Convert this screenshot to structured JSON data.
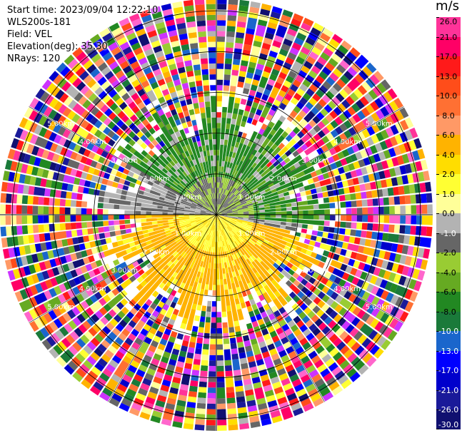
{
  "header": {
    "start_time": "Start time: 2023/09/04 12:22:10",
    "instrument": "WLS200s-181",
    "field": "Field: VEL",
    "elevation": "Elevation(deg): 35.30",
    "nrays": "NRays: 120"
  },
  "colorbar": {
    "unit": "m/s",
    "ticks": [
      "26.0",
      "21.0",
      "17.0",
      "13.0",
      "10.0",
      "8.0",
      "6.0",
      "4.0",
      "2.0",
      "1.0",
      "0.0",
      "-1.0",
      "-2.0",
      "-4.0",
      "-6.0",
      "-8.0",
      "-10.0",
      "-13.0",
      "-17.0",
      "-21.0",
      "-26.0",
      "-30.0"
    ],
    "colors": [
      "#ff3399",
      "#ff0066",
      "#ff1a1a",
      "#ff4d1a",
      "#ff7033",
      "#ff9966",
      "#ffb300",
      "#ffdd00",
      "#ffff33",
      "#ffff99",
      "#b3b3b3",
      "#666666",
      "#99cc33",
      "#66aa22",
      "#228822",
      "#1a7a3a",
      "#1a66cc",
      "#0000ff",
      "#0000cc",
      "#1a1a99",
      "#101070"
    ]
  },
  "range_rings": {
    "labels": [
      "1.00km",
      "2.00km",
      "3.00km",
      "4.00km",
      "5.00km"
    ],
    "max_km": 5.3
  },
  "field_colors": {
    "ring_line": "#000000",
    "noise_palette": [
      "#ff3399",
      "#ff0066",
      "#ff1a1a",
      "#ff4d1a",
      "#ff7033",
      "#ff9966",
      "#ffb300",
      "#ffdd00",
      "#ffff33",
      "#ffff99",
      "#b3b3b3",
      "#666666",
      "#99cc33",
      "#66aa22",
      "#228822",
      "#1a7a3a",
      "#1a66cc",
      "#0000ff",
      "#0000cc",
      "#1a1a99",
      "#101070",
      "#cc33ff",
      "#ff66cc"
    ]
  }
}
